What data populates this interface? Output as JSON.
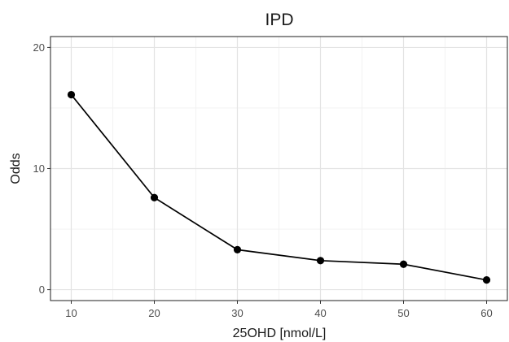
{
  "chart_data": {
    "type": "line",
    "title": "IPD",
    "xlabel": "25OHD [nmol/L]",
    "ylabel": "Odds",
    "xlim": [
      7.5,
      62.5
    ],
    "ylim": [
      -0.9,
      20.9
    ],
    "x_ticks": [
      10,
      20,
      30,
      40,
      50,
      60
    ],
    "y_ticks": [
      0,
      10,
      20
    ],
    "grid": true,
    "legend": "none",
    "x": [
      10,
      20,
      30,
      40,
      50,
      60
    ],
    "series": [
      {
        "values": [
          16.1,
          7.6,
          3.3,
          2.4,
          2.1,
          0.8
        ],
        "color": "#000000"
      }
    ]
  }
}
